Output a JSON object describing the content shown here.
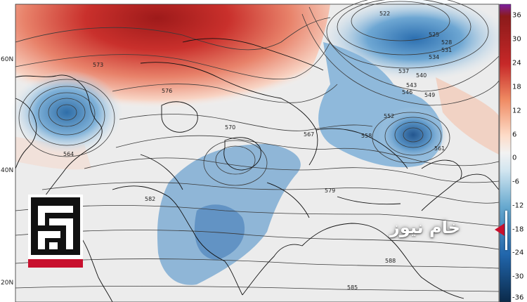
{
  "map": {
    "latitude_labels": [
      {
        "label": "60N",
        "id": "lat-60n"
      },
      {
        "label": "40N",
        "id": "lat-40n"
      },
      {
        "label": "20N",
        "id": "lat-20n"
      }
    ],
    "contour_labels": [
      "522",
      "525",
      "528",
      "531",
      "534",
      "537",
      "540",
      "543",
      "546",
      "549",
      "552",
      "558",
      "561",
      "564",
      "567",
      "570",
      "573",
      "576",
      "579",
      "582",
      "585",
      "588"
    ]
  },
  "colorbar": {
    "ticks": [
      "36",
      "30",
      "24",
      "18",
      "12",
      "6",
      "0",
      "-6",
      "-12",
      "-18",
      "-24",
      "-30",
      "-36"
    ],
    "colors": {
      "top": "#7b1fa2",
      "dark_red": "#8b1a1a",
      "red": "#c62828",
      "orange": "#ef8a62",
      "light": "#fddbc7",
      "neutral": "#f2f2f2",
      "light_blue": "#d1e5f0",
      "blue": "#67a9cf",
      "dark_blue": "#2166ac",
      "navy": "#0b2a4a"
    }
  },
  "brand": {
    "text": "خام نيوز",
    "accent_color": "#c8102e"
  }
}
